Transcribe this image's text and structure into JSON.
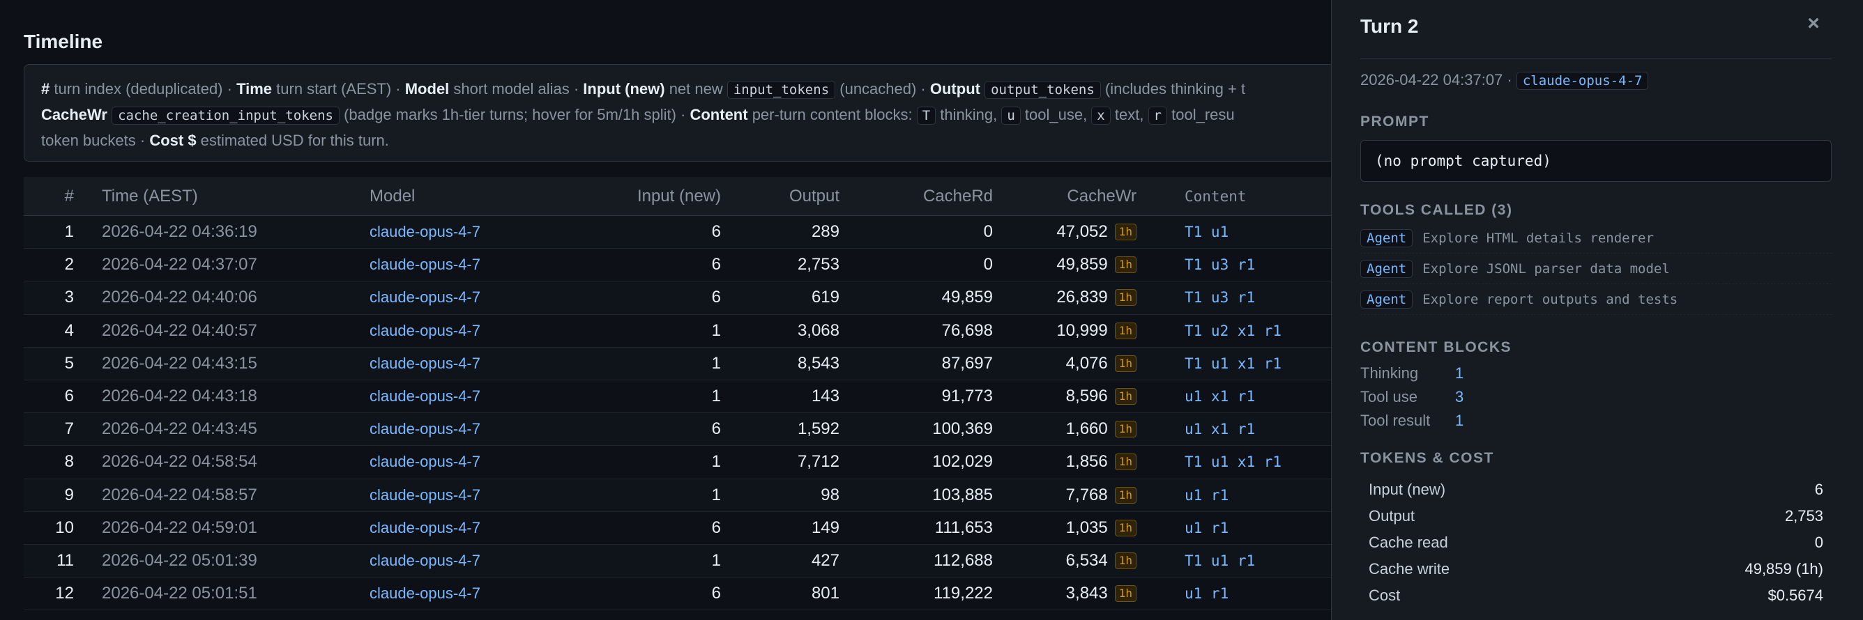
{
  "timeline": {
    "title": "Timeline",
    "legend": {
      "l1": [
        {
          "b": "#"
        },
        {
          "t": " turn index (deduplicated) · "
        },
        {
          "b": "Time"
        },
        {
          "t": " turn start (AEST) · "
        },
        {
          "b": "Model"
        },
        {
          "t": " short model alias · "
        },
        {
          "b": "Input (new)"
        },
        {
          "t": " net new "
        },
        {
          "c": "input_tokens"
        },
        {
          "t": " (uncached) · "
        },
        {
          "b": "Output"
        },
        {
          "t": " "
        },
        {
          "c": "output_tokens"
        },
        {
          "t": " (includes thinking + t"
        }
      ],
      "l2": [
        {
          "b": "CacheWr"
        },
        {
          "t": " "
        },
        {
          "c": "cache_creation_input_tokens"
        },
        {
          "t": " (badge marks 1h-tier turns; hover for 5m/1h split) · "
        },
        {
          "b": "Content"
        },
        {
          "t": " per-turn content blocks: "
        },
        {
          "c": "T"
        },
        {
          "t": " thinking, "
        },
        {
          "c": "u"
        },
        {
          "t": " tool_use, "
        },
        {
          "c": "x"
        },
        {
          "t": " text, "
        },
        {
          "c": "r"
        },
        {
          "t": " tool_resu"
        }
      ],
      "l3": [
        {
          "t": "token buckets · "
        },
        {
          "b": "Cost $"
        },
        {
          "t": " estimated USD for this turn."
        }
      ]
    },
    "columns": {
      "num": "#",
      "time": "Time (AEST)",
      "model": "Model",
      "input": "Input (new)",
      "output": "Output",
      "cache_rd": "CacheRd",
      "cache_wr": "CacheWr",
      "content": "Content"
    },
    "badge_label": "1h",
    "rows": [
      {
        "n": "1",
        "time": "2026-04-22 04:36:19",
        "model": "claude-opus-4-7",
        "input": "6",
        "output": "289",
        "rd": "0",
        "wr": "47,052",
        "content": "T1 u1"
      },
      {
        "n": "2",
        "time": "2026-04-22 04:37:07",
        "model": "claude-opus-4-7",
        "input": "6",
        "output": "2,753",
        "rd": "0",
        "wr": "49,859",
        "content": "T1 u3 r1"
      },
      {
        "n": "3",
        "time": "2026-04-22 04:40:06",
        "model": "claude-opus-4-7",
        "input": "6",
        "output": "619",
        "rd": "49,859",
        "wr": "26,839",
        "content": "T1 u3 r1"
      },
      {
        "n": "4",
        "time": "2026-04-22 04:40:57",
        "model": "claude-opus-4-7",
        "input": "1",
        "output": "3,068",
        "rd": "76,698",
        "wr": "10,999",
        "content": "T1 u2 x1 r1"
      },
      {
        "n": "5",
        "time": "2026-04-22 04:43:15",
        "model": "claude-opus-4-7",
        "input": "1",
        "output": "8,543",
        "rd": "87,697",
        "wr": "4,076",
        "content": "T1 u1 x1 r1"
      },
      {
        "n": "6",
        "time": "2026-04-22 04:43:18",
        "model": "claude-opus-4-7",
        "input": "1",
        "output": "143",
        "rd": "91,773",
        "wr": "8,596",
        "content": "u1 x1 r1"
      },
      {
        "n": "7",
        "time": "2026-04-22 04:43:45",
        "model": "claude-opus-4-7",
        "input": "6",
        "output": "1,592",
        "rd": "100,369",
        "wr": "1,660",
        "content": "u1 x1 r1"
      },
      {
        "n": "8",
        "time": "2026-04-22 04:58:54",
        "model": "claude-opus-4-7",
        "input": "1",
        "output": "7,712",
        "rd": "102,029",
        "wr": "1,856",
        "content": "T1 u1 x1 r1"
      },
      {
        "n": "9",
        "time": "2026-04-22 04:58:57",
        "model": "claude-opus-4-7",
        "input": "1",
        "output": "98",
        "rd": "103,885",
        "wr": "7,768",
        "content": "u1 r1"
      },
      {
        "n": "10",
        "time": "2026-04-22 04:59:01",
        "model": "claude-opus-4-7",
        "input": "6",
        "output": "149",
        "rd": "111,653",
        "wr": "1,035",
        "content": "u1 r1"
      },
      {
        "n": "11",
        "time": "2026-04-22 05:01:39",
        "model": "claude-opus-4-7",
        "input": "1",
        "output": "427",
        "rd": "112,688",
        "wr": "6,534",
        "content": "T1 u1 r1"
      },
      {
        "n": "12",
        "time": "2026-04-22 05:01:51",
        "model": "claude-opus-4-7",
        "input": "6",
        "output": "801",
        "rd": "119,222",
        "wr": "3,843",
        "content": "u1 r1"
      }
    ]
  },
  "panel": {
    "title": "Turn 2",
    "close_icon": "×",
    "meta_time": "2026-04-22 04:37:07 · ",
    "meta_model": "claude-opus-4-7",
    "prompt_heading": "PROMPT",
    "prompt_text": "(no prompt captured)",
    "tools_heading": "TOOLS CALLED (3)",
    "tools": [
      {
        "tag": "Agent",
        "desc": "Explore HTML details renderer"
      },
      {
        "tag": "Agent",
        "desc": "Explore JSONL parser data model"
      },
      {
        "tag": "Agent",
        "desc": "Explore report outputs and tests"
      }
    ],
    "blocks_heading": "CONTENT BLOCKS",
    "blocks": [
      {
        "k": "Thinking",
        "v": "1"
      },
      {
        "k": "Tool use",
        "v": "3"
      },
      {
        "k": "Tool result",
        "v": "1"
      }
    ],
    "tokens_heading": "TOKENS & COST",
    "tokens": [
      {
        "k": "Input (new)",
        "v": "6"
      },
      {
        "k": "Output",
        "v": "2,753"
      },
      {
        "k": "Cache read",
        "v": "0"
      },
      {
        "k": "Cache write",
        "v": "49,859 (1h)"
      },
      {
        "k": "Cost",
        "v": "$0.5674"
      }
    ]
  },
  "colors": {
    "background": "#0d1117",
    "panel": "#161b22",
    "accent_blue": "#79b8ff",
    "badge_amber": "#d29922"
  }
}
